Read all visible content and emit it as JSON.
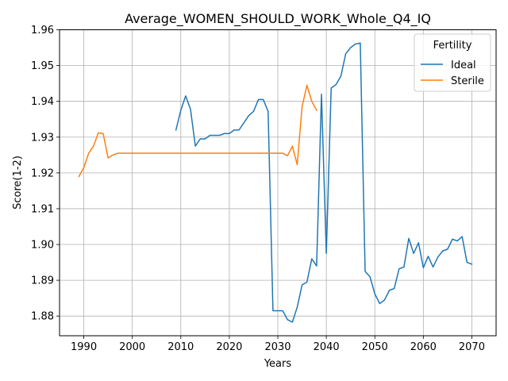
{
  "chart_data": {
    "type": "line",
    "title": "Average_WOMEN_SHOULD_WORK_Whole_Q4_IQ",
    "xlabel": "Years",
    "ylabel": "Score(1-2)",
    "xlim": [
      1985,
      2075
    ],
    "ylim": [
      1.8745,
      1.96
    ],
    "xticks": [
      1990,
      2000,
      2010,
      2020,
      2030,
      2040,
      2050,
      2060,
      2070
    ],
    "yticks": [
      1.88,
      1.89,
      1.9,
      1.91,
      1.92,
      1.93,
      1.94,
      1.95,
      1.96
    ],
    "ytick_labels": [
      "1.88",
      "1.89",
      "1.90",
      "1.91",
      "1.92",
      "1.93",
      "1.94",
      "1.95",
      "1.96"
    ],
    "grid": true,
    "legend": {
      "title": "Fertility",
      "position": "upper-right"
    },
    "series": [
      {
        "name": "Ideal",
        "color": "#1f77b4",
        "x": [
          2009,
          2010,
          2011,
          2012,
          2013,
          2014,
          2015,
          2016,
          2017,
          2018,
          2019,
          2020,
          2021,
          2022,
          2023,
          2024,
          2025,
          2026,
          2027,
          2028,
          2029,
          2030,
          2031,
          2032,
          2033,
          2034,
          2035,
          2036,
          2037,
          2038,
          2039,
          2040,
          2041,
          2042,
          2043,
          2044,
          2045,
          2046,
          2047,
          2048,
          2049,
          2050,
          2051,
          2052,
          2053,
          2054,
          2055,
          2056,
          2057,
          2058,
          2059,
          2060,
          2061,
          2062,
          2063,
          2064,
          2065,
          2066,
          2067,
          2068,
          2069,
          2070
        ],
        "values": [
          1.932,
          1.9375,
          1.9415,
          1.9378,
          1.9275,
          1.9295,
          1.9295,
          1.9305,
          1.9305,
          1.9305,
          1.931,
          1.931,
          1.932,
          1.932,
          1.934,
          1.936,
          1.9372,
          1.9405,
          1.9405,
          1.9372,
          1.8815,
          1.8815,
          1.8815,
          1.879,
          1.8783,
          1.8825,
          1.8887,
          1.8895,
          1.896,
          1.894,
          1.942,
          1.8975,
          1.9437,
          1.9447,
          1.947,
          1.9533,
          1.955,
          1.956,
          1.9563,
          1.8925,
          1.891,
          1.8862,
          1.8835,
          1.8845,
          1.8872,
          1.8877,
          1.8932,
          1.8937,
          1.9017,
          1.8975,
          1.9005,
          1.8935,
          1.8967,
          1.8937,
          1.8965,
          1.8982,
          1.8987,
          1.9015,
          1.901,
          1.9022,
          1.895,
          1.8945
        ]
      },
      {
        "name": "Sterile",
        "color": "#ff7f0e",
        "x": [
          1989,
          1990,
          1991,
          1992,
          1993,
          1994,
          1995,
          1996,
          1997,
          1998,
          1999,
          2000,
          2005,
          2010,
          2015,
          2020,
          2025,
          2030,
          2031,
          2032,
          2033,
          2034,
          2035,
          2036,
          2037,
          2038
        ],
        "values": [
          1.919,
          1.9215,
          1.9255,
          1.9275,
          1.9312,
          1.931,
          1.9242,
          1.925,
          1.9255,
          1.9255,
          1.9255,
          1.9255,
          1.9255,
          1.9255,
          1.9255,
          1.9255,
          1.9255,
          1.9255,
          1.9255,
          1.9248,
          1.9275,
          1.9223,
          1.9385,
          1.9445,
          1.94,
          1.9375
        ]
      }
    ]
  }
}
